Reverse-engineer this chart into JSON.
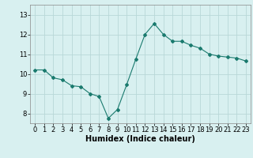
{
  "x": [
    0,
    1,
    2,
    3,
    4,
    5,
    6,
    7,
    8,
    9,
    10,
    11,
    12,
    13,
    14,
    15,
    16,
    17,
    18,
    19,
    20,
    21,
    22,
    23
  ],
  "y": [
    10.2,
    10.2,
    9.8,
    9.7,
    9.4,
    9.35,
    9.0,
    8.85,
    7.75,
    8.2,
    9.45,
    10.75,
    12.0,
    12.55,
    12.0,
    11.65,
    11.65,
    11.45,
    11.3,
    11.0,
    10.9,
    10.85,
    10.8,
    10.65
  ],
  "xlabel": "Humidex (Indice chaleur)",
  "ylim": [
    7.5,
    13.5
  ],
  "xlim": [
    -0.5,
    23.5
  ],
  "yticks": [
    8,
    9,
    10,
    11,
    12,
    13
  ],
  "xticks": [
    0,
    1,
    2,
    3,
    4,
    5,
    6,
    7,
    8,
    9,
    10,
    11,
    12,
    13,
    14,
    15,
    16,
    17,
    18,
    19,
    20,
    21,
    22,
    23
  ],
  "line_color": "#1a7a6e",
  "marker": "D",
  "marker_size": 2.0,
  "bg_color": "#d8f0f0",
  "grid_color": "#b8d8d8",
  "xlabel_fontsize": 7,
  "tick_fontsize": 6
}
